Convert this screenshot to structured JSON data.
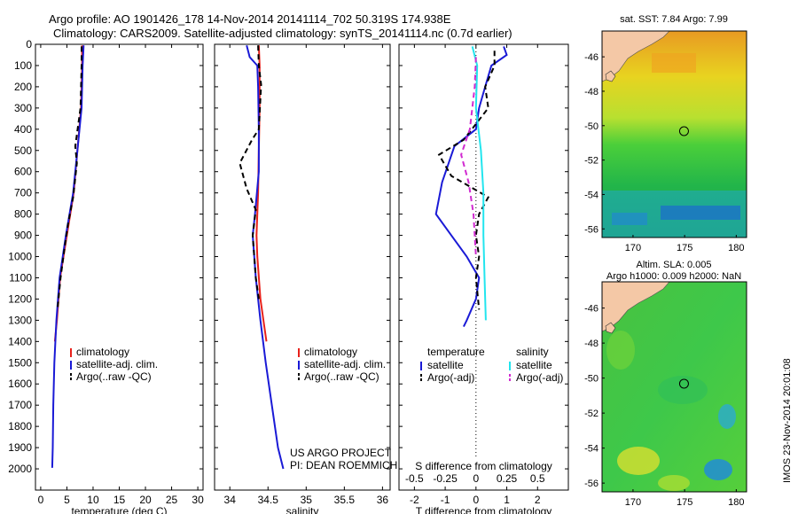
{
  "header": {
    "line1": "Argo profile: AO 1901426_178 14-Nov-2014 20141114_702 50.319S 174.938E",
    "line2": "Climatology: CARS2009. Satellite-adjusted climatology: synTS_20141114.nc (0.7d earlier)"
  },
  "sidebar_note": "IMOS 23-Nov-2014 20:01:08",
  "project_note": {
    "line1": "US ARGO PROJECT",
    "line2": "PI: DEAN ROEMMICH"
  },
  "colors": {
    "climatology": "#e8211b",
    "satellite": "#1a1ad6",
    "argo": "#000000",
    "salinity_satellite": "#22e5ee",
    "salinity_argo": "#d12bd1",
    "land": "#f4c8a6"
  },
  "chart_data": [
    {
      "type": "line",
      "xlabel": "temperature (deg C)",
      "ylabel": "",
      "xlim": [
        -1,
        31
      ],
      "ylim": [
        2100,
        0
      ],
      "xticks": [
        0,
        5,
        10,
        15,
        20,
        25,
        30
      ],
      "yticks": [
        0,
        100,
        200,
        300,
        400,
        500,
        600,
        700,
        800,
        900,
        1000,
        1100,
        1200,
        1300,
        1400,
        1500,
        1600,
        1700,
        1800,
        1900,
        2000
      ],
      "legend": [
        "climatology",
        "satellite-adj. clim.",
        "Argo(..raw -QC)"
      ],
      "series": [
        {
          "name": "climatology",
          "points": [
            [
              7.9,
              5
            ],
            [
              7.9,
              100
            ],
            [
              7.7,
              300
            ],
            [
              7.0,
              500
            ],
            [
              6.3,
              700
            ],
            [
              5.0,
              900
            ],
            [
              3.7,
              1100
            ],
            [
              3.1,
              1300
            ],
            [
              2.7,
              1400
            ]
          ]
        },
        {
          "name": "satellite-adj. clim.",
          "points": [
            [
              8.2,
              5
            ],
            [
              8.0,
              100
            ],
            [
              7.8,
              300
            ],
            [
              7.0,
              500
            ],
            [
              6.2,
              700
            ],
            [
              4.8,
              900
            ],
            [
              3.6,
              1100
            ],
            [
              3.0,
              1300
            ],
            [
              2.6,
              1500
            ],
            [
              2.4,
              1700
            ],
            [
              2.3,
              1900
            ],
            [
              2.2,
              1995
            ]
          ]
        },
        {
          "name": "Argo(..raw -QC)",
          "points": [
            [
              7.8,
              10
            ],
            [
              7.8,
              100
            ],
            [
              7.6,
              300
            ],
            [
              6.6,
              480
            ],
            [
              6.9,
              560
            ],
            [
              6.2,
              720
            ],
            [
              5.2,
              850
            ],
            [
              4.6,
              950
            ],
            [
              3.8,
              1100
            ],
            [
              3.2,
              1250
            ]
          ]
        }
      ]
    },
    {
      "type": "line",
      "xlabel": "salinity",
      "ylabel": "",
      "xlim": [
        33.8,
        36.1
      ],
      "ylim": [
        2100,
        0
      ],
      "xticks": [
        34,
        34.5,
        35,
        35.5,
        36
      ],
      "legend": [
        "climatology",
        "satellite-adj. clim.",
        "Argo(..raw -QC)"
      ],
      "series": [
        {
          "name": "climatology",
          "points": [
            [
              34.38,
              5
            ],
            [
              34.39,
              100
            ],
            [
              34.39,
              300
            ],
            [
              34.38,
              500
            ],
            [
              34.37,
              700
            ],
            [
              34.35,
              900
            ],
            [
              34.36,
              1000
            ],
            [
              34.4,
              1200
            ],
            [
              34.46,
              1350
            ],
            [
              34.48,
              1400
            ]
          ]
        },
        {
          "name": "satellite-adj. clim.",
          "points": [
            [
              34.22,
              5
            ],
            [
              34.26,
              60
            ],
            [
              34.36,
              100
            ],
            [
              34.37,
              200
            ],
            [
              34.38,
              400
            ],
            [
              34.38,
              600
            ],
            [
              34.33,
              800
            ],
            [
              34.3,
              900
            ],
            [
              34.34,
              1100
            ],
            [
              34.4,
              1300
            ],
            [
              34.47,
              1500
            ],
            [
              34.55,
              1700
            ],
            [
              34.63,
              1900
            ],
            [
              34.7,
              2000
            ]
          ]
        },
        {
          "name": "Argo(..raw -QC)",
          "points": [
            [
              34.37,
              5
            ],
            [
              34.38,
              100
            ],
            [
              34.41,
              190
            ],
            [
              34.38,
              400
            ],
            [
              34.29,
              450
            ],
            [
              34.13,
              560
            ],
            [
              34.22,
              680
            ],
            [
              34.34,
              780
            ],
            [
              34.3,
              900
            ],
            [
              34.34,
              1100
            ],
            [
              34.38,
              1200
            ]
          ]
        }
      ]
    },
    {
      "type": "line",
      "xlabel": "T difference from climatology",
      "secondary_xlabel": "S difference from climatology",
      "ylabel": "",
      "xlim": [
        -2.5,
        3
      ],
      "ylim": [
        2100,
        0
      ],
      "xticks": [
        -2,
        -1,
        0,
        1,
        2
      ],
      "secondary_xticks": [
        -0.5,
        -0.25,
        0,
        0.25,
        0.5
      ],
      "secondary_xlim": [
        -0.625,
        0.75
      ],
      "legend_headers": [
        "temperature",
        "salinity"
      ],
      "legend": [
        "satellite",
        "Argo(-adj)",
        "satellite",
        "Argo(-adj)"
      ],
      "series": [
        {
          "name": "satellite",
          "axis": "T",
          "points": [
            [
              0.9,
              10
            ],
            [
              1.0,
              50
            ],
            [
              0.5,
              100
            ],
            [
              0.3,
              200
            ],
            [
              0.1,
              300
            ],
            [
              0.0,
              400
            ],
            [
              -0.7,
              480
            ],
            [
              -1.1,
              650
            ],
            [
              -1.3,
              800
            ],
            [
              -0.8,
              900
            ],
            [
              -0.3,
              1000
            ],
            [
              0.1,
              1100
            ],
            [
              0.0,
              1200
            ],
            [
              -0.3,
              1300
            ],
            [
              -0.4,
              1330
            ]
          ]
        },
        {
          "name": "Argo(-adj)",
          "axis": "T",
          "points": [
            [
              0.6,
              30
            ],
            [
              0.6,
              100
            ],
            [
              0.3,
              200
            ],
            [
              0.4,
              300
            ],
            [
              -0.4,
              450
            ],
            [
              -1.2,
              520
            ],
            [
              -0.8,
              620
            ],
            [
              0.4,
              720
            ],
            [
              0.1,
              800
            ],
            [
              0.0,
              900
            ],
            [
              0.1,
              1000
            ],
            [
              0.0,
              1100
            ],
            [
              0.1,
              1250
            ]
          ]
        },
        {
          "name": "satellite",
          "axis": "S",
          "points": [
            [
              -0.03,
              10
            ],
            [
              0.01,
              100
            ],
            [
              0.0,
              300
            ],
            [
              0.04,
              500
            ],
            [
              0.06,
              700
            ],
            [
              0.06,
              900
            ],
            [
              0.07,
              1100
            ],
            [
              0.08,
              1300
            ]
          ]
        },
        {
          "name": "Argo(-adj)",
          "axis": "S",
          "points": [
            [
              0.0,
              60
            ],
            [
              -0.01,
              200
            ],
            [
              -0.05,
              400
            ],
            [
              -0.12,
              520
            ],
            [
              -0.06,
              650
            ],
            [
              -0.02,
              800
            ],
            [
              0.0,
              1000
            ]
          ]
        }
      ]
    },
    {
      "type": "heatmap",
      "title": "sat. SST: 7.84  Argo: 7.99",
      "xlim": [
        167,
        181
      ],
      "ylim": [
        -56.5,
        -44.5
      ],
      "xticks": [
        170,
        175,
        180
      ],
      "yticks": [
        -46,
        -48,
        -50,
        -52,
        -54,
        -56
      ],
      "marker": [
        174.94,
        -50.32
      ]
    },
    {
      "type": "heatmap",
      "title": "Altim. SLA: 0.005",
      "subtitle": "Argo h1000: 0.009 h2000: NaN",
      "xlim": [
        167,
        181
      ],
      "ylim": [
        -56.5,
        -44.5
      ],
      "xticks": [
        170,
        175,
        180
      ],
      "yticks": [
        -46,
        -48,
        -50,
        -52,
        -54,
        -56
      ],
      "marker": [
        174.94,
        -50.32
      ]
    }
  ]
}
